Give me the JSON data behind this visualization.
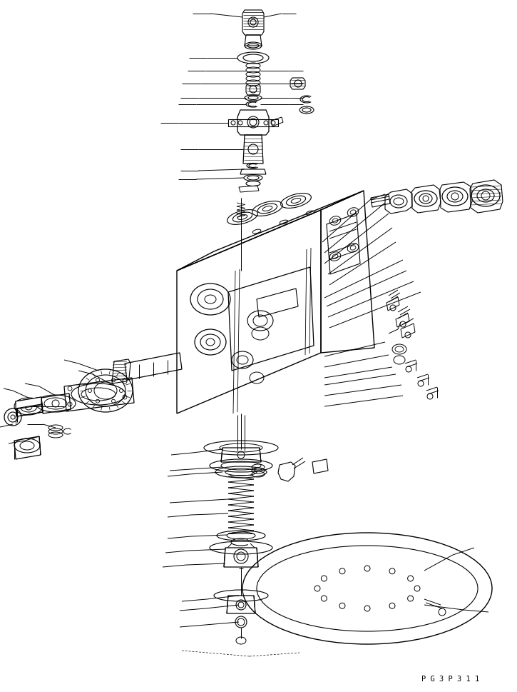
{
  "bg_color": "#ffffff",
  "line_color": "#000000",
  "page_code": "P G 3 P 3 1 1",
  "figsize": [
    7.25,
    9.7
  ],
  "dpi": 100
}
